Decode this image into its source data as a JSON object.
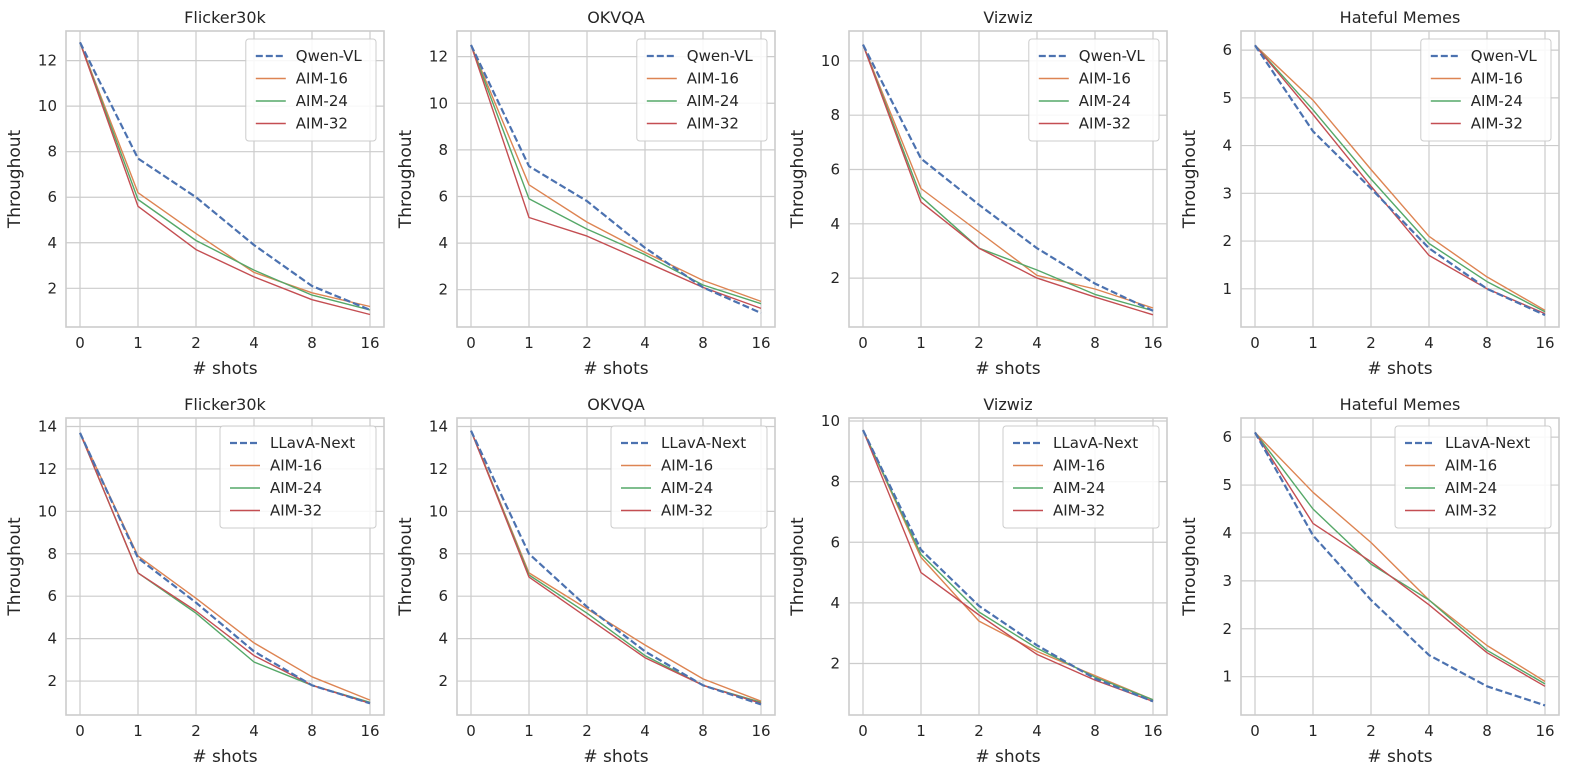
{
  "figure": {
    "x_label": "# shots",
    "y_label": "Throughout"
  },
  "colors": {
    "baseline": "#4c72b0",
    "aim16": "#dd8452",
    "aim24": "#55a868",
    "aim32": "#c44e52",
    "grid": "#cccccc"
  },
  "chart_data": [
    {
      "type": "line",
      "title": "Flicker30k",
      "xlabel": "# shots",
      "ylabel": "Throughout",
      "categories": [
        "0",
        "1",
        "2",
        "4",
        "8",
        "16"
      ],
      "ylim": [
        0.3,
        13.3
      ],
      "yticks": [
        2,
        4,
        6,
        8,
        10,
        12
      ],
      "legend": "top-right",
      "series": [
        {
          "name": "Qwen-VL",
          "style": "dashed",
          "values": [
            12.8,
            7.7,
            6.0,
            3.9,
            2.1,
            1.05
          ]
        },
        {
          "name": "AIM-16",
          "style": "solid",
          "values": [
            12.8,
            6.2,
            4.4,
            2.7,
            1.8,
            1.2
          ]
        },
        {
          "name": "AIM-24",
          "style": "solid",
          "values": [
            12.8,
            5.9,
            4.1,
            2.8,
            1.7,
            1.05
          ]
        },
        {
          "name": "AIM-32",
          "style": "solid",
          "values": [
            12.8,
            5.6,
            3.7,
            2.5,
            1.5,
            0.85
          ]
        }
      ]
    },
    {
      "type": "line",
      "title": "OKVQA",
      "xlabel": "# shots",
      "ylabel": "Throughout",
      "categories": [
        "0",
        "1",
        "2",
        "4",
        "8",
        "16"
      ],
      "ylim": [
        0.4,
        13.1
      ],
      "yticks": [
        2,
        4,
        6,
        8,
        10,
        12
      ],
      "legend": "top-right",
      "series": [
        {
          "name": "Qwen-VL",
          "style": "dashed",
          "values": [
            12.5,
            7.3,
            5.8,
            3.8,
            2.1,
            1.0
          ]
        },
        {
          "name": "AIM-16",
          "style": "solid",
          "values": [
            12.5,
            6.5,
            4.9,
            3.6,
            2.4,
            1.5
          ]
        },
        {
          "name": "AIM-24",
          "style": "solid",
          "values": [
            12.5,
            5.9,
            4.6,
            3.5,
            2.2,
            1.4
          ]
        },
        {
          "name": "AIM-32",
          "style": "solid",
          "values": [
            12.5,
            5.1,
            4.3,
            3.2,
            2.1,
            1.2
          ]
        }
      ]
    },
    {
      "type": "line",
      "title": "Vizwiz",
      "xlabel": "# shots",
      "ylabel": "Throughout",
      "categories": [
        "0",
        "1",
        "2",
        "4",
        "8",
        "16"
      ],
      "ylim": [
        0.2,
        11.1
      ],
      "yticks": [
        2,
        4,
        6,
        8,
        10
      ],
      "legend": "top-right",
      "series": [
        {
          "name": "Qwen-VL",
          "style": "dashed",
          "values": [
            10.6,
            6.4,
            4.7,
            3.1,
            1.8,
            0.8
          ]
        },
        {
          "name": "AIM-16",
          "style": "solid",
          "values": [
            10.6,
            5.3,
            3.7,
            2.1,
            1.6,
            0.9
          ]
        },
        {
          "name": "AIM-24",
          "style": "solid",
          "values": [
            10.6,
            5.0,
            3.1,
            2.3,
            1.4,
            0.8
          ]
        },
        {
          "name": "AIM-32",
          "style": "solid",
          "values": [
            10.6,
            4.8,
            3.1,
            2.0,
            1.3,
            0.65
          ]
        }
      ]
    },
    {
      "type": "line",
      "title": "Hateful Memes",
      "xlabel": "# shots",
      "ylabel": "Throughout",
      "categories": [
        "0",
        "1",
        "2",
        "4",
        "8",
        "16"
      ],
      "ylim": [
        0.2,
        6.4
      ],
      "yticks": [
        1,
        2,
        3,
        4,
        5,
        6
      ],
      "legend": "top-right",
      "series": [
        {
          "name": "Qwen-VL",
          "style": "dashed",
          "values": [
            6.1,
            4.3,
            3.1,
            1.85,
            1.0,
            0.45
          ]
        },
        {
          "name": "AIM-16",
          "style": "solid",
          "values": [
            6.1,
            4.95,
            3.5,
            2.1,
            1.25,
            0.55
          ]
        },
        {
          "name": "AIM-24",
          "style": "solid",
          "values": [
            6.1,
            4.75,
            3.3,
            1.95,
            1.15,
            0.52
          ]
        },
        {
          "name": "AIM-32",
          "style": "solid",
          "values": [
            6.1,
            4.65,
            3.15,
            1.7,
            1.0,
            0.48
          ]
        }
      ]
    },
    {
      "type": "line",
      "title": "Flicker30k",
      "xlabel": "# shots",
      "ylabel": "Throughout",
      "categories": [
        "0",
        "1",
        "2",
        "4",
        "8",
        "16"
      ],
      "ylim": [
        0.4,
        14.4
      ],
      "yticks": [
        2,
        4,
        6,
        8,
        10,
        12,
        14
      ],
      "legend": "top-right",
      "series": [
        {
          "name": "LLavA-Next",
          "style": "dashed",
          "values": [
            13.7,
            7.8,
            5.7,
            3.4,
            1.8,
            0.95
          ]
        },
        {
          "name": "AIM-16",
          "style": "solid",
          "values": [
            13.7,
            7.9,
            5.9,
            3.8,
            2.2,
            1.1
          ]
        },
        {
          "name": "AIM-24",
          "style": "solid",
          "values": [
            13.7,
            7.1,
            5.2,
            2.9,
            1.8,
            1.0
          ]
        },
        {
          "name": "AIM-32",
          "style": "solid",
          "values": [
            13.7,
            7.1,
            5.3,
            3.2,
            1.8,
            0.95
          ]
        }
      ]
    },
    {
      "type": "line",
      "title": "OKVQA",
      "xlabel": "# shots",
      "ylabel": "Throughout",
      "categories": [
        "0",
        "1",
        "2",
        "4",
        "8",
        "16"
      ],
      "ylim": [
        0.4,
        14.4
      ],
      "yticks": [
        2,
        4,
        6,
        8,
        10,
        12,
        14
      ],
      "legend": "top-right",
      "series": [
        {
          "name": "LLavA-Next",
          "style": "dashed",
          "values": [
            13.8,
            8.0,
            5.5,
            3.4,
            1.8,
            0.9
          ]
        },
        {
          "name": "AIM-16",
          "style": "solid",
          "values": [
            13.8,
            7.1,
            5.4,
            3.7,
            2.1,
            1.05
          ]
        },
        {
          "name": "AIM-24",
          "style": "solid",
          "values": [
            13.8,
            7.0,
            5.2,
            3.2,
            1.8,
            1.0
          ]
        },
        {
          "name": "AIM-32",
          "style": "solid",
          "values": [
            13.8,
            6.9,
            5.0,
            3.1,
            1.8,
            0.95
          ]
        }
      ]
    },
    {
      "type": "line",
      "title": "Vizwiz",
      "xlabel": "# shots",
      "ylabel": "Throughout",
      "categories": [
        "0",
        "1",
        "2",
        "4",
        "8",
        "16"
      ],
      "ylim": [
        0.3,
        10.1
      ],
      "yticks": [
        2,
        4,
        6,
        8,
        10
      ],
      "legend": "top-right",
      "series": [
        {
          "name": "LLavA-Next",
          "style": "dashed",
          "values": [
            9.7,
            5.75,
            3.9,
            2.6,
            1.5,
            0.75
          ]
        },
        {
          "name": "AIM-16",
          "style": "solid",
          "values": [
            9.7,
            5.5,
            3.4,
            2.4,
            1.6,
            0.8
          ]
        },
        {
          "name": "AIM-24",
          "style": "solid",
          "values": [
            9.7,
            5.6,
            3.7,
            2.5,
            1.55,
            0.8
          ]
        },
        {
          "name": "AIM-32",
          "style": "solid",
          "values": [
            9.7,
            5.0,
            3.6,
            2.3,
            1.45,
            0.75
          ]
        }
      ]
    },
    {
      "type": "line",
      "title": "Hateful Memes",
      "xlabel": "# shots",
      "ylabel": "Throughout",
      "categories": [
        "0",
        "1",
        "2",
        "4",
        "8",
        "16"
      ],
      "ylim": [
        0.2,
        6.4
      ],
      "yticks": [
        1,
        2,
        3,
        4,
        5,
        6
      ],
      "legend": "top-right",
      "series": [
        {
          "name": "LLavA-Next",
          "style": "dashed",
          "values": [
            6.1,
            3.95,
            2.6,
            1.45,
            0.8,
            0.4
          ]
        },
        {
          "name": "AIM-16",
          "style": "solid",
          "values": [
            6.1,
            4.85,
            3.8,
            2.6,
            1.65,
            0.9
          ]
        },
        {
          "name": "AIM-24",
          "style": "solid",
          "values": [
            6.1,
            4.5,
            3.35,
            2.6,
            1.55,
            0.85
          ]
        },
        {
          "name": "AIM-32",
          "style": "solid",
          "values": [
            6.1,
            4.2,
            3.4,
            2.5,
            1.5,
            0.8
          ]
        }
      ]
    }
  ]
}
